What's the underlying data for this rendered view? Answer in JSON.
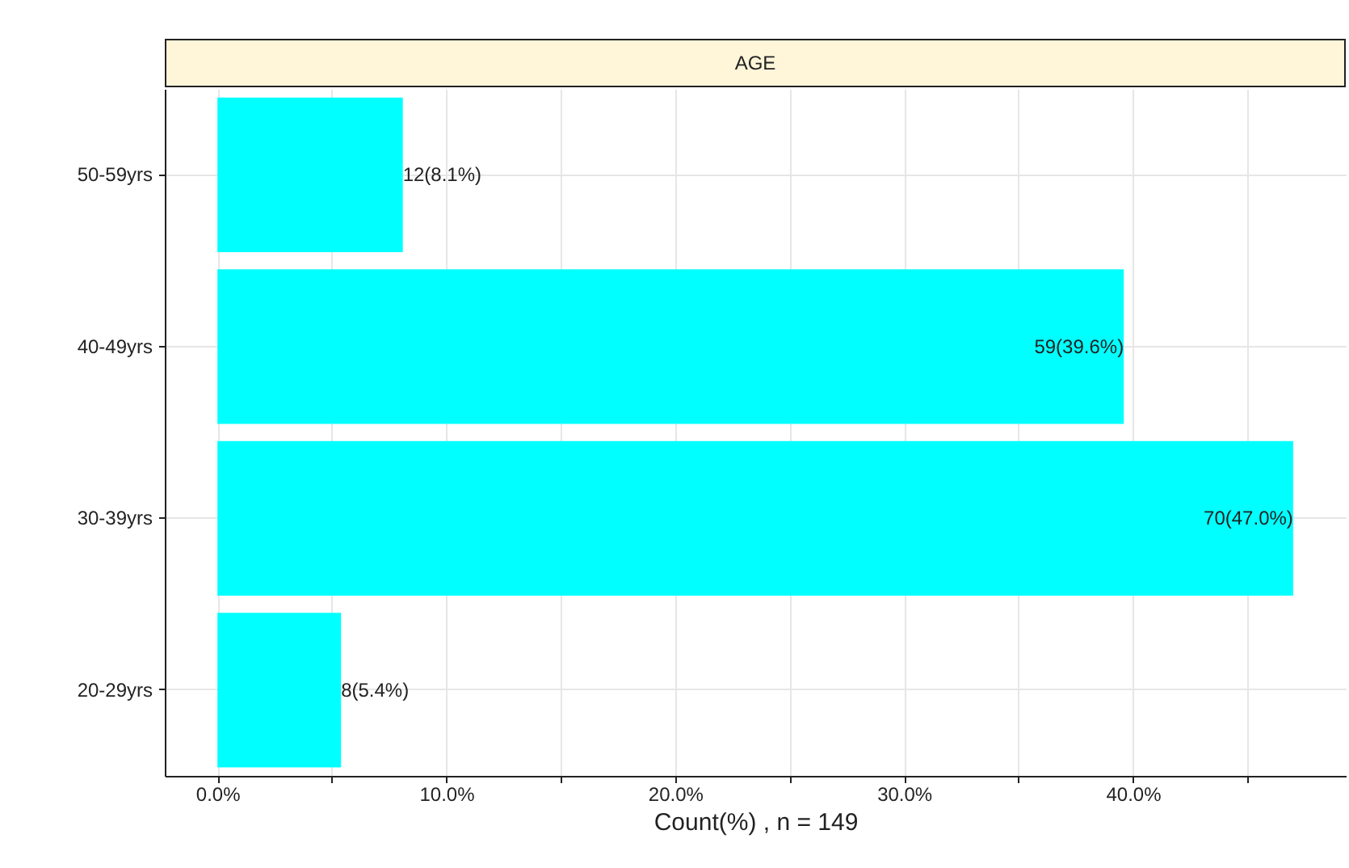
{
  "chart_data": {
    "type": "bar",
    "orientation": "horizontal",
    "title": "AGE",
    "xlabel": "Count(%) , n = 149",
    "categories": [
      "50-59yrs",
      "40-49yrs",
      "30-39yrs",
      "20-29yrs"
    ],
    "values": [
      8.1,
      39.6,
      47.0,
      5.4
    ],
    "value_labels": [
      "12(8.1%)",
      "59(39.6%)",
      "70(47.0%)",
      "8(5.4%)"
    ],
    "color": "#00ffff",
    "xlim": [
      -2.3,
      49.3
    ],
    "xticks": [
      {
        "value": 0,
        "label": "0.0%"
      },
      {
        "value": 5,
        "label": null
      },
      {
        "value": 10,
        "label": "10.0%"
      },
      {
        "value": 15,
        "label": null
      },
      {
        "value": 20,
        "label": "20.0%"
      },
      {
        "value": 25,
        "label": null
      },
      {
        "value": 30,
        "label": "30.0%"
      },
      {
        "value": 35,
        "label": null
      },
      {
        "value": 40,
        "label": "40.0%"
      },
      {
        "value": 45,
        "label": null
      }
    ],
    "grid": true
  }
}
